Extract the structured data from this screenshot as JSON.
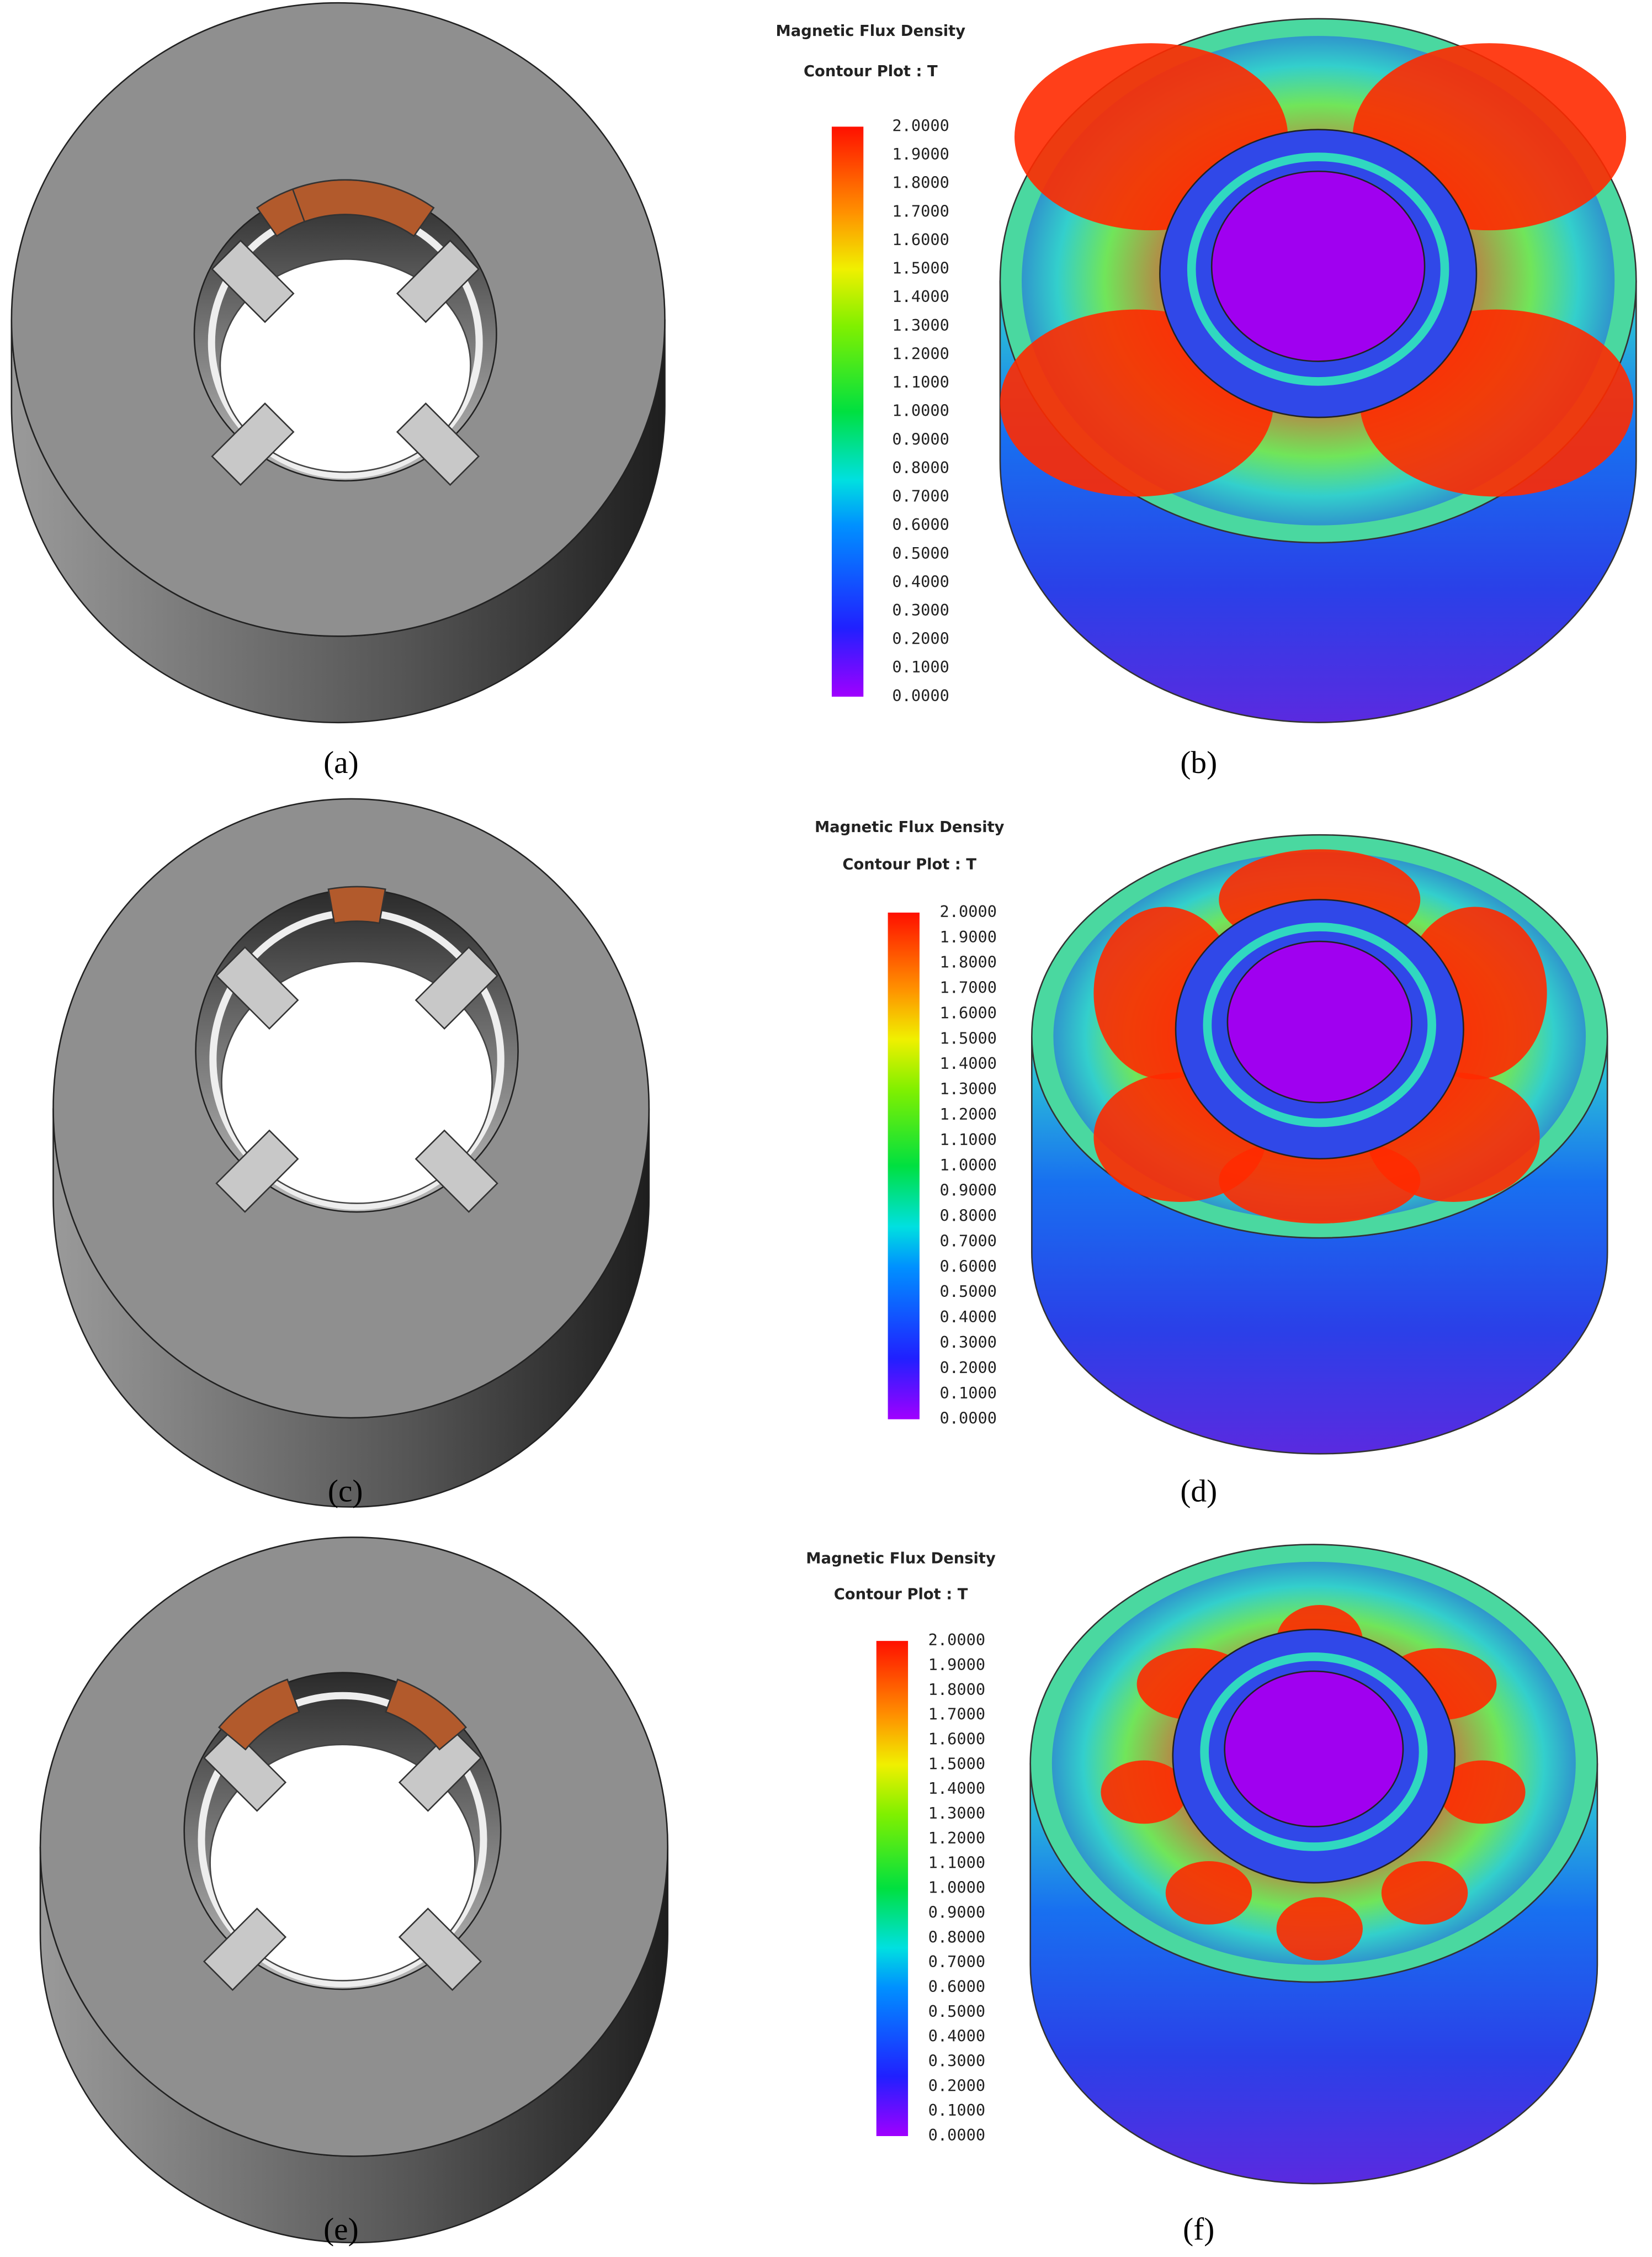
{
  "panels": [
    {
      "label": "(a)"
    },
    {
      "label": "(b)"
    },
    {
      "label": "(c)"
    },
    {
      "label": "(d)"
    },
    {
      "label": "(e)"
    },
    {
      "label": "(f)"
    }
  ],
  "colorbars": [
    {
      "title": "Magnetic Flux Density",
      "subtitle": "Contour Plot : T",
      "ticks": [
        {
          "value": 2,
          "label": "2.0000"
        },
        {
          "value": 1.9,
          "label": "1.9000"
        },
        {
          "value": 1.8,
          "label": "1.8000"
        },
        {
          "value": 1.7,
          "label": "1.7000"
        },
        {
          "value": 1.6,
          "label": "1.6000"
        },
        {
          "value": 1.5,
          "label": "1.5000"
        },
        {
          "value": 1.4,
          "label": "1.4000"
        },
        {
          "value": 1.3,
          "label": "1.3000"
        },
        {
          "value": 1.2,
          "label": "1.2000"
        },
        {
          "value": 1.1,
          "label": "1.1000"
        },
        {
          "value": 1,
          "label": "1.0000"
        },
        {
          "value": 0.9,
          "label": "0.9000"
        },
        {
          "value": 0.8,
          "label": "0.8000"
        },
        {
          "value": 0.7,
          "label": "0.7000"
        },
        {
          "value": 0.6,
          "label": "0.6000"
        },
        {
          "value": 0.5,
          "label": "0.5000"
        },
        {
          "value": 0.4,
          "label": "0.4000"
        },
        {
          "value": 0.3,
          "label": "0.3000"
        },
        {
          "value": 0.2,
          "label": "0.2000"
        },
        {
          "value": 0.1,
          "label": "0.1000"
        },
        {
          "value": 0,
          "label": "0.0000"
        }
      ]
    },
    {
      "title": "Magnetic Flux Density",
      "subtitle": "Contour Plot : T",
      "ticks": [
        {
          "value": 2,
          "label": "2.0000"
        },
        {
          "value": 1.9,
          "label": "1.9000"
        },
        {
          "value": 1.8,
          "label": "1.8000"
        },
        {
          "value": 1.7,
          "label": "1.7000"
        },
        {
          "value": 1.6,
          "label": "1.6000"
        },
        {
          "value": 1.5,
          "label": "1.5000"
        },
        {
          "value": 1.4,
          "label": "1.4000"
        },
        {
          "value": 1.3,
          "label": "1.3000"
        },
        {
          "value": 1.2,
          "label": "1.2000"
        },
        {
          "value": 1.1,
          "label": "1.1000"
        },
        {
          "value": 1,
          "label": "1.0000"
        },
        {
          "value": 0.9,
          "label": "0.9000"
        },
        {
          "value": 0.8,
          "label": "0.8000"
        },
        {
          "value": 0.7,
          "label": "0.7000"
        },
        {
          "value": 0.6,
          "label": "0.6000"
        },
        {
          "value": 0.5,
          "label": "0.5000"
        },
        {
          "value": 0.4,
          "label": "0.4000"
        },
        {
          "value": 0.3,
          "label": "0.3000"
        },
        {
          "value": 0.2,
          "label": "0.2000"
        },
        {
          "value": 0.1,
          "label": "0.1000"
        },
        {
          "value": 0,
          "label": "0.0000"
        }
      ]
    },
    {
      "title": "Magnetic Flux Density",
      "subtitle": "Contour Plot : T",
      "ticks": [
        {
          "value": 2,
          "label": "2.0000"
        },
        {
          "value": 1.9,
          "label": "1.9000"
        },
        {
          "value": 1.8,
          "label": "1.8000"
        },
        {
          "value": 1.7,
          "label": "1.7000"
        },
        {
          "value": 1.6,
          "label": "1.6000"
        },
        {
          "value": 1.5,
          "label": "1.5000"
        },
        {
          "value": 1.4,
          "label": "1.4000"
        },
        {
          "value": 1.3,
          "label": "1.3000"
        },
        {
          "value": 1.2,
          "label": "1.2000"
        },
        {
          "value": 1.1,
          "label": "1.1000"
        },
        {
          "value": 1,
          "label": "1.0000"
        },
        {
          "value": 0.9,
          "label": "0.9000"
        },
        {
          "value": 0.8,
          "label": "0.8000"
        },
        {
          "value": 0.7,
          "label": "0.7000"
        },
        {
          "value": 0.6,
          "label": "0.6000"
        },
        {
          "value": 0.5,
          "label": "0.5000"
        },
        {
          "value": 0.4,
          "label": "0.4000"
        },
        {
          "value": 0.3,
          "label": "0.3000"
        },
        {
          "value": 0.2,
          "label": "0.2000"
        },
        {
          "value": 0.1,
          "label": "0.1000"
        },
        {
          "value": 0,
          "label": "0.0000"
        }
      ]
    }
  ]
}
